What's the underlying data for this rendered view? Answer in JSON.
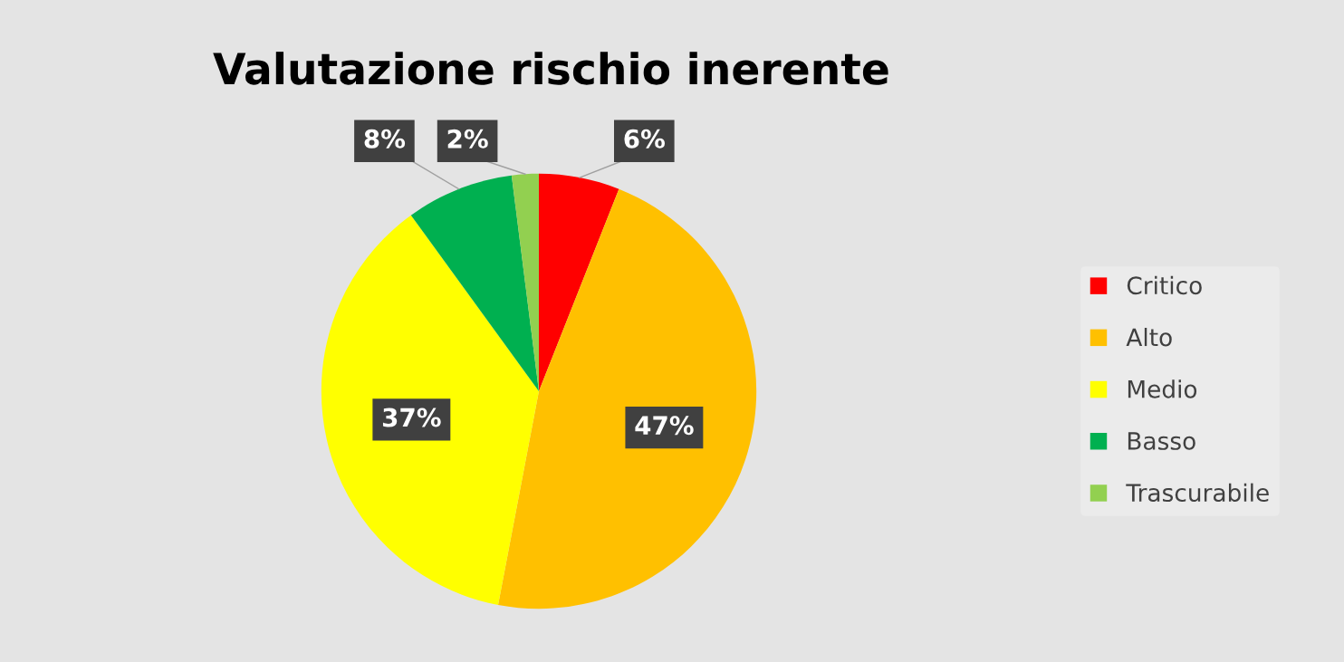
{
  "chart_data": {
    "type": "pie",
    "title": "Valutazione rischio inerente",
    "categories": [
      "Critico",
      "Alto",
      "Medio",
      "Basso",
      "Trascurabile"
    ],
    "values": [
      6,
      47,
      37,
      8,
      2
    ],
    "colors": [
      "#ff0000",
      "#ffc000",
      "#ffff00",
      "#00b050",
      "#92d050"
    ],
    "value_labels": [
      "6%",
      "47%",
      "37%",
      "8%",
      "2%"
    ],
    "legend": "right"
  }
}
